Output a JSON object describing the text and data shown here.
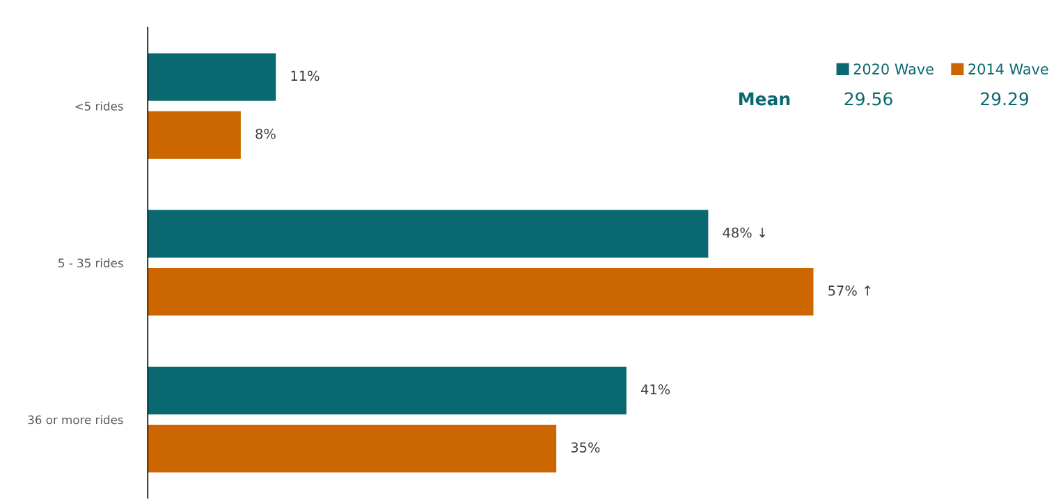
{
  "chart_data": {
    "type": "bar",
    "orientation": "horizontal",
    "categories": [
      "<5 rides",
      "5 - 35 rides",
      "36 or more rides"
    ],
    "series": [
      {
        "name": "2020 Wave",
        "color": "#0a6870",
        "values": [
          11,
          48,
          41
        ],
        "value_labels": [
          "11%",
          "48% ↓",
          "41%"
        ]
      },
      {
        "name": "2014 Wave",
        "color": "#cc6600",
        "values": [
          8,
          57,
          35
        ],
        "value_labels": [
          "8%",
          "57% ↑",
          "35%"
        ]
      }
    ],
    "tick_labels": "y",
    "legend": "top right",
    "grid": false,
    "annotations": [
      "Mean",
      "29.56",
      "29.29"
    ]
  }
}
